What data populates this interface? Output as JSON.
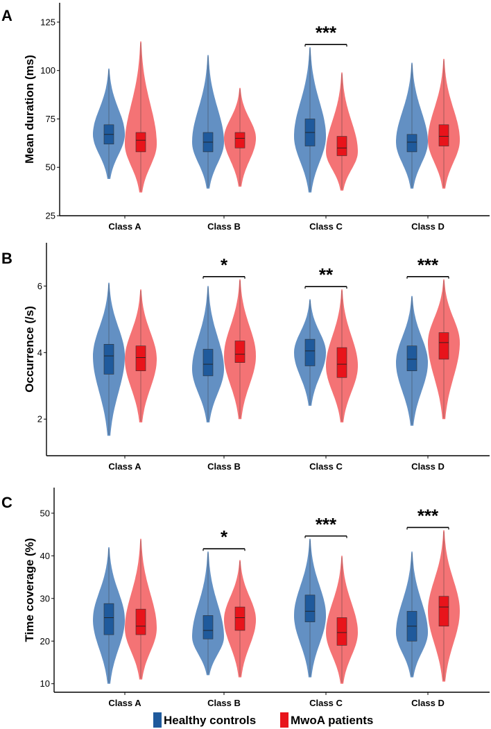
{
  "figure": {
    "legend": [
      {
        "label": "Healthy controls",
        "color": "#1f5a9c",
        "violin_color": "#5b8ac0"
      },
      {
        "label": "MwoA patients",
        "color": "#e8141b",
        "violin_color": "#f36b6e"
      }
    ]
  },
  "chart_data": [
    {
      "type": "violin",
      "panel": "A",
      "ylabel": "Mean duration (ms)",
      "ylim": [
        25,
        135
      ],
      "yticks": [
        25,
        50,
        75,
        100,
        125
      ],
      "categories": [
        "Class A",
        "Class B",
        "Class C",
        "Class D"
      ],
      "series": [
        {
          "name": "Healthy controls",
          "groups": [
            {
              "min": 44,
              "max": 101,
              "q1": 62,
              "median": 67,
              "q3": 72,
              "mode": 67
            },
            {
              "min": 39,
              "max": 108,
              "q1": 58,
              "median": 63,
              "q3": 68,
              "mode": 63
            },
            {
              "min": 37,
              "max": 112,
              "q1": 61,
              "median": 68,
              "q3": 75,
              "mode": 66
            },
            {
              "min": 39,
              "max": 104,
              "q1": 58,
              "median": 63,
              "q3": 67,
              "mode": 63
            }
          ]
        },
        {
          "name": "MwoA patients",
          "groups": [
            {
              "min": 37,
              "max": 115,
              "q1": 58,
              "median": 64,
              "q3": 68,
              "mode": 62
            },
            {
              "min": 40,
              "max": 91,
              "q1": 60,
              "median": 65,
              "q3": 68,
              "mode": 65
            },
            {
              "min": 38,
              "max": 99,
              "q1": 56,
              "median": 60,
              "q3": 66,
              "mode": 58
            },
            {
              "min": 39,
              "max": 106,
              "q1": 61,
              "median": 66,
              "q3": 72,
              "mode": 64
            }
          ]
        }
      ],
      "significance": [
        {
          "category": "Class C",
          "label": "***"
        }
      ]
    },
    {
      "type": "violin",
      "panel": "B",
      "ylabel": "Occurrence (/s)",
      "ylim": [
        0.9,
        7.3
      ],
      "yticks": [
        2,
        4,
        6
      ],
      "categories": [
        "Class A",
        "Class B",
        "Class C",
        "Class D"
      ],
      "series": [
        {
          "name": "Healthy controls",
          "groups": [
            {
              "min": 1.5,
              "max": 6.1,
              "q1": 3.35,
              "median": 3.9,
              "q3": 4.25,
              "mode": 3.9
            },
            {
              "min": 1.9,
              "max": 6.0,
              "q1": 3.3,
              "median": 3.65,
              "q3": 4.1,
              "mode": 3.5
            },
            {
              "min": 2.4,
              "max": 5.6,
              "q1": 3.6,
              "median": 4.05,
              "q3": 4.4,
              "mode": 4.0
            },
            {
              "min": 1.8,
              "max": 5.7,
              "q1": 3.45,
              "median": 3.8,
              "q3": 4.2,
              "mode": 3.7
            }
          ]
        },
        {
          "name": "MwoA patients",
          "groups": [
            {
              "min": 1.9,
              "max": 5.9,
              "q1": 3.45,
              "median": 3.85,
              "q3": 4.2,
              "mode": 3.8
            },
            {
              "min": 2.0,
              "max": 6.2,
              "q1": 3.7,
              "median": 3.95,
              "q3": 4.35,
              "mode": 3.9
            },
            {
              "min": 1.9,
              "max": 5.9,
              "q1": 3.25,
              "median": 3.65,
              "q3": 4.15,
              "mode": 3.6
            },
            {
              "min": 2.0,
              "max": 6.2,
              "q1": 3.8,
              "median": 4.3,
              "q3": 4.6,
              "mode": 4.3
            }
          ]
        }
      ],
      "significance": [
        {
          "category": "Class B",
          "label": "*"
        },
        {
          "category": "Class C",
          "label": "**"
        },
        {
          "category": "Class D",
          "label": "***"
        }
      ]
    },
    {
      "type": "violin",
      "panel": "C",
      "ylabel": "Time coverage (%)",
      "ylim": [
        8,
        56
      ],
      "yticks": [
        10,
        20,
        30,
        40,
        50
      ],
      "categories": [
        "Class A",
        "Class B",
        "Class C",
        "Class D"
      ],
      "series": [
        {
          "name": "Healthy controls",
          "groups": [
            {
              "min": 10,
              "max": 42,
              "q1": 21.5,
              "median": 25.5,
              "q3": 28.8,
              "mode": 25
            },
            {
              "min": 12,
              "max": 41,
              "q1": 20.5,
              "median": 22.5,
              "q3": 26,
              "mode": 21
            },
            {
              "min": 11.5,
              "max": 44,
              "q1": 24.5,
              "median": 27,
              "q3": 30.8,
              "mode": 26
            },
            {
              "min": 11.5,
              "max": 41,
              "q1": 20,
              "median": 23.5,
              "q3": 27,
              "mode": 22
            }
          ]
        },
        {
          "name": "MwoA patients",
          "groups": [
            {
              "min": 11,
              "max": 44,
              "q1": 21.5,
              "median": 23.5,
              "q3": 27.5,
              "mode": 23
            },
            {
              "min": 11.5,
              "max": 39,
              "q1": 22.5,
              "median": 25.5,
              "q3": 28,
              "mode": 25
            },
            {
              "min": 10,
              "max": 40,
              "q1": 19,
              "median": 22,
              "q3": 25.5,
              "mode": 22
            },
            {
              "min": 10.5,
              "max": 46,
              "q1": 23.5,
              "median": 28,
              "q3": 30.5,
              "mode": 27
            }
          ]
        }
      ],
      "significance": [
        {
          "category": "Class B",
          "label": "*"
        },
        {
          "category": "Class C",
          "label": "***"
        },
        {
          "category": "Class D",
          "label": "***"
        }
      ]
    }
  ]
}
